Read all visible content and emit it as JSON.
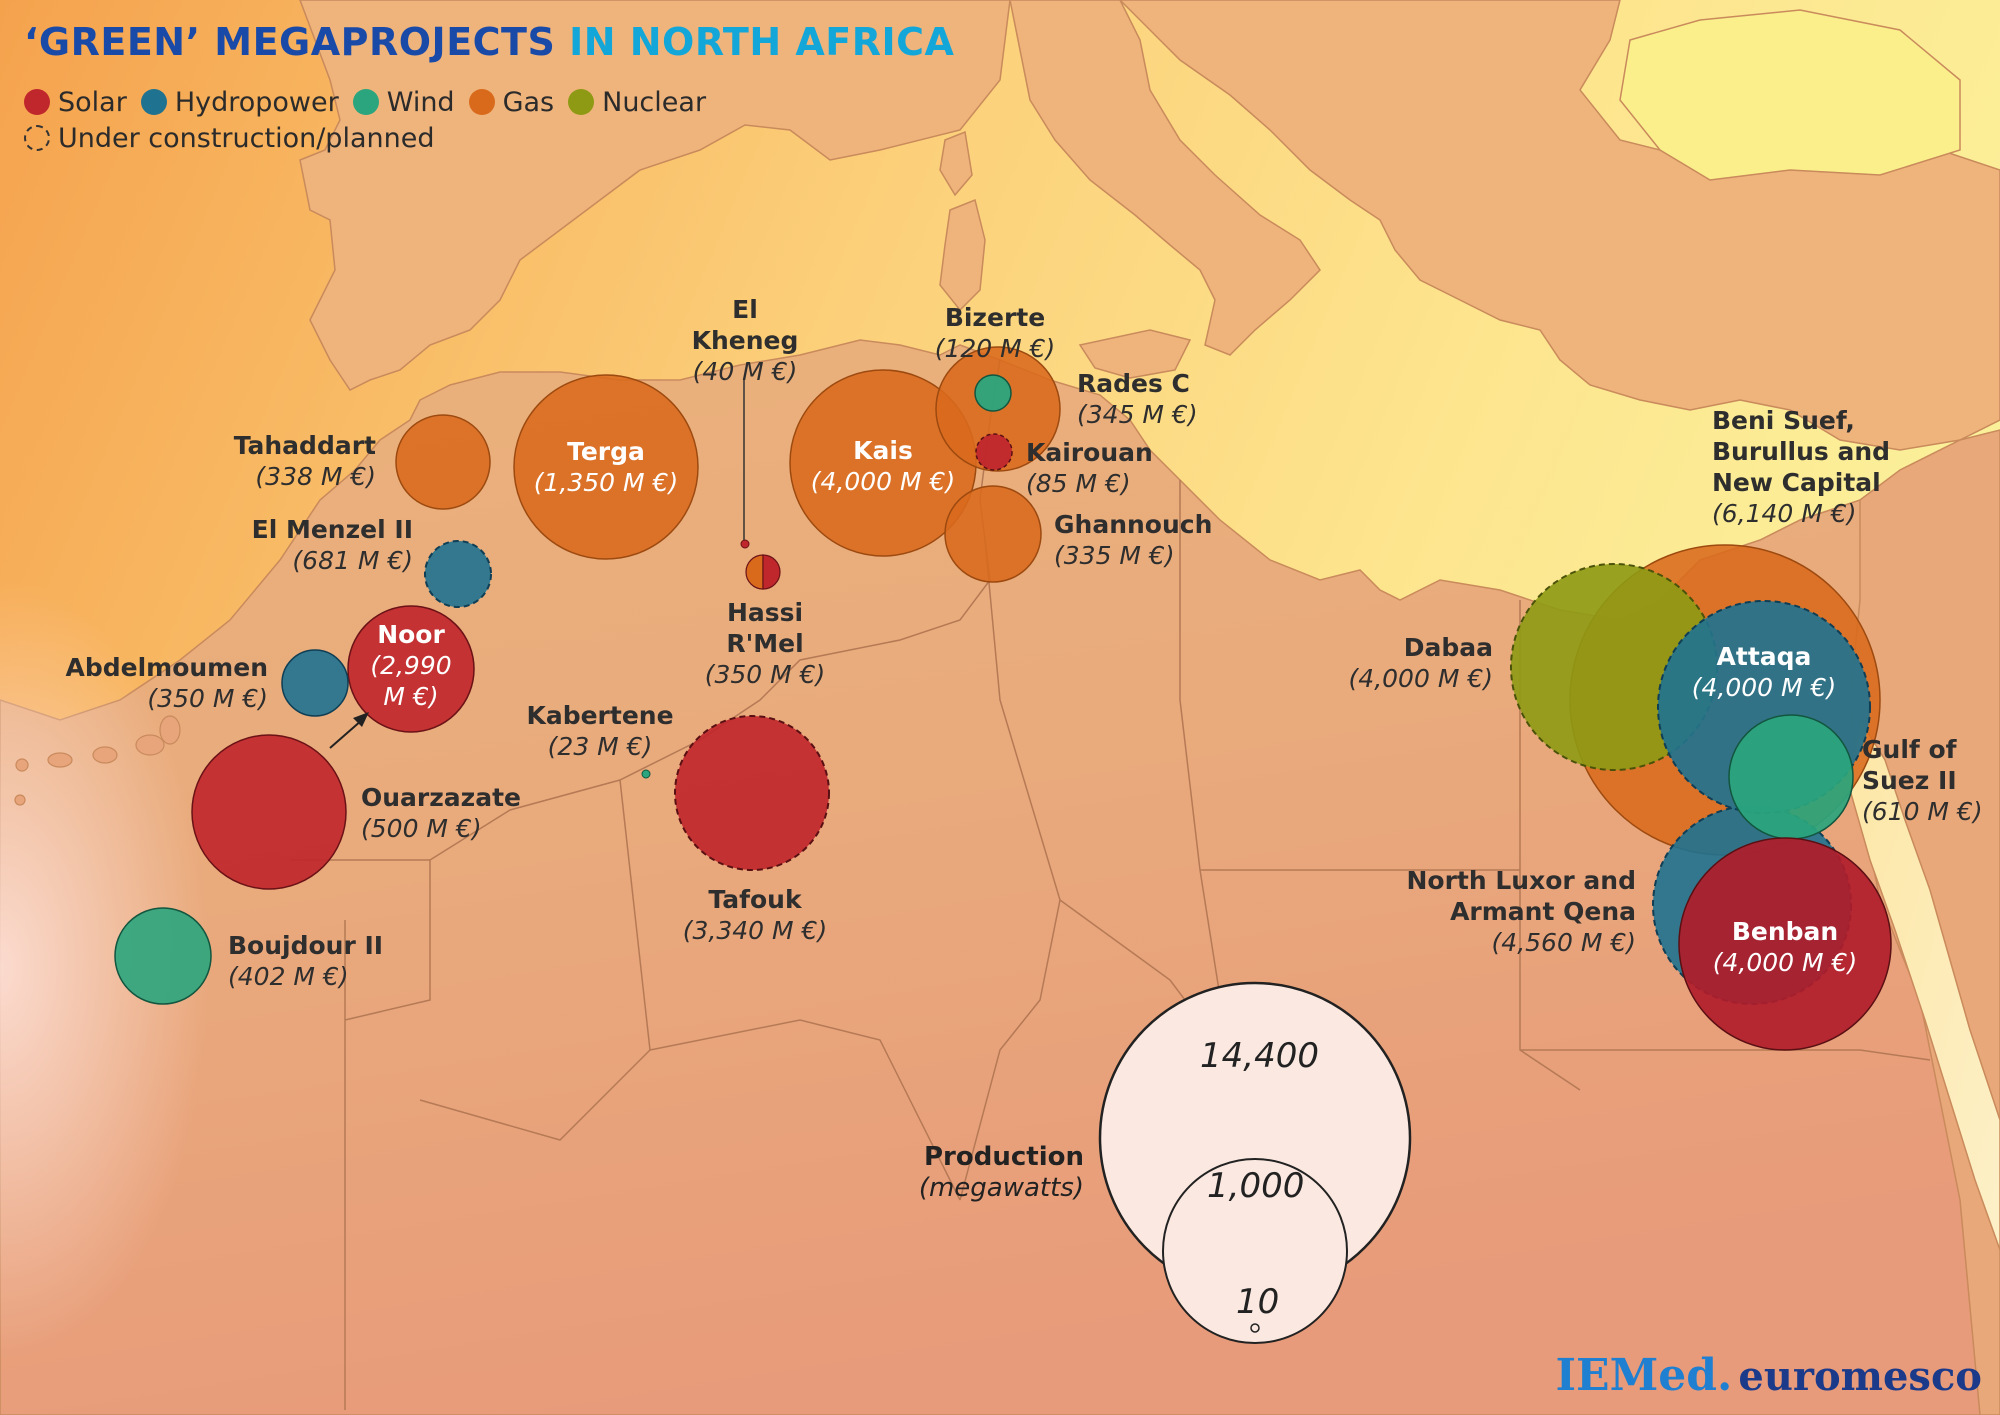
{
  "title": {
    "part1": "‘GREEN’ MEGAPROJECTS",
    "part2": "IN NORTH AFRICA"
  },
  "legend": {
    "items": [
      {
        "label": "Solar",
        "color": "#c0272d"
      },
      {
        "label": "Hydropower",
        "color": "#1f7290"
      },
      {
        "label": "Wind",
        "color": "#2aa57d"
      },
      {
        "label": "Gas",
        "color": "#d96a1c"
      },
      {
        "label": "Nuclear",
        "color": "#8e9a14"
      }
    ],
    "status": "Under construction/planned"
  },
  "projects": [
    {
      "name": "Tahaddart",
      "cost": "(338 M €)",
      "type": "Gas",
      "status": "existing"
    },
    {
      "name": "Terga",
      "cost": "(1,350 M €)",
      "type": "Gas",
      "status": "existing"
    },
    {
      "name": "El Menzel II",
      "cost": "(681 M €)",
      "type": "Hydropower",
      "status": "planned"
    },
    {
      "name": "Noor",
      "cost_line1": "(2,990",
      "cost_line2": "M €)",
      "type": "Solar",
      "status": "existing"
    },
    {
      "name": "Abdelmoumen",
      "cost": "(350 M €)",
      "type": "Hydropower",
      "status": "existing"
    },
    {
      "name": "Ouarzazate",
      "cost": "(500 M €)",
      "type": "Solar",
      "status": "existing"
    },
    {
      "name": "Boujdour II",
      "cost": "(402 M €)",
      "type": "Wind",
      "status": "existing"
    },
    {
      "name_line1": "El",
      "name_line2": "Kheneg",
      "cost": "(40 M €)",
      "type": "Solar",
      "status": "existing"
    },
    {
      "name_line1": "Hassi",
      "name_line2": "R'Mel",
      "cost": "(350 M €)",
      "type": "Gas & Solar",
      "status": "existing"
    },
    {
      "name": "Kabertene",
      "cost": "(23 M €)",
      "type": "Wind",
      "status": "existing"
    },
    {
      "name": "Tafouk",
      "cost": "(3,340 M €)",
      "type": "Solar",
      "status": "planned"
    },
    {
      "name": "Kais",
      "cost": "(4,000 M €)",
      "type": "Gas",
      "status": "existing"
    },
    {
      "name": "Bizerte",
      "cost": "(120 M €)",
      "type": "Wind",
      "status": "existing"
    },
    {
      "name": "Rades C",
      "cost": "(345 M €)",
      "type": "Gas",
      "status": "existing"
    },
    {
      "name": "Kairouan",
      "cost": "(85 M €)",
      "type": "Solar",
      "status": "planned"
    },
    {
      "name": "Ghannouch",
      "cost": "(335 M €)",
      "type": "Gas",
      "status": "existing"
    },
    {
      "name_line1": "Beni Suef,",
      "name_line2": "Burullus and",
      "name_line3": "New Capital",
      "cost": "(6,140 M €)",
      "type": "Gas",
      "status": "existing"
    },
    {
      "name": "Dabaa",
      "cost": "(4,000 M €)",
      "type": "Nuclear",
      "status": "planned"
    },
    {
      "name": "Attaqa",
      "cost": "(4,000 M €)",
      "type": "Hydropower",
      "status": "planned"
    },
    {
      "name_line1": "Gulf of",
      "name_line2": "Suez II",
      "cost": "(610 M €)",
      "type": "Wind",
      "status": "existing"
    },
    {
      "name_line1": "North Luxor and",
      "name_line2": "Armant Qena",
      "cost": "(4,560 M €)",
      "type": "Hydropower",
      "status": "planned"
    },
    {
      "name": "Benban",
      "cost": "(4,000 M €)",
      "type": "Solar",
      "status": "existing"
    }
  ],
  "scale": {
    "title": "Production",
    "unit": "(megawatts)",
    "values": [
      "14,400",
      "1,000",
      "10"
    ]
  },
  "brand": {
    "part1": "IEMed.",
    "part2": "euromesco"
  }
}
